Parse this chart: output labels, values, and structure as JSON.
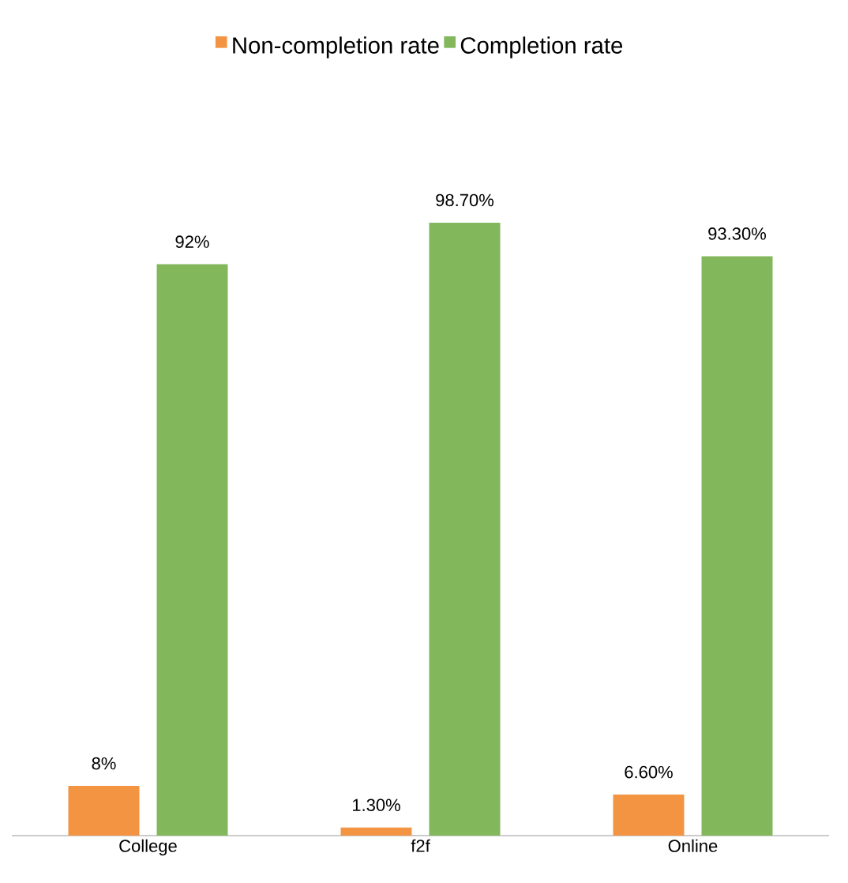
{
  "chart_data": {
    "type": "bar",
    "categories": [
      "College",
      "f2f",
      "Online"
    ],
    "series": [
      {
        "name": "Non-completion rate",
        "color": "#f39443",
        "values": [
          8,
          1.3,
          6.6
        ],
        "value_labels": [
          "8%",
          "1.30%",
          "6.60%"
        ]
      },
      {
        "name": "Completion rate",
        "color": "#82b75c",
        "values": [
          92,
          98.7,
          93.3
        ],
        "value_labels": [
          "92%",
          "98.70%",
          "93.30%"
        ]
      }
    ],
    "legend": "top"
  }
}
